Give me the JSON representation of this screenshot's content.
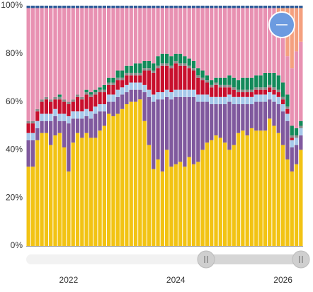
{
  "chart_data": {
    "type": "stacked-bar",
    "categories": [
      null,
      null,
      null,
      null,
      null,
      null,
      null,
      null,
      null,
      "2022",
      null,
      null,
      null,
      null,
      null,
      null,
      null,
      null,
      null,
      null,
      null,
      null,
      null,
      null,
      null,
      null,
      null,
      null,
      null,
      null,
      null,
      null,
      null,
      "2024",
      null,
      null,
      null,
      null,
      null,
      null,
      null,
      null,
      null,
      null,
      null,
      null,
      null,
      null,
      null,
      null,
      null,
      null,
      null,
      null,
      null,
      null,
      null,
      "2026",
      null,
      null,
      null,
      null
    ],
    "ylim": [
      0,
      100
    ],
    "yticks": [
      {
        "value": 0,
        "label": "0%"
      },
      {
        "value": 20,
        "label": "20%"
      },
      {
        "value": 40,
        "label": "40%"
      },
      {
        "value": 60,
        "label": "60%"
      },
      {
        "value": 80,
        "label": "80%"
      },
      {
        "value": 100,
        "label": "100%"
      }
    ],
    "grid": false,
    "series": [
      {
        "color": "#f2c314",
        "values": [
          33,
          33,
          44,
          47,
          47,
          42,
          46,
          47,
          41,
          31,
          43,
          47,
          45,
          47,
          45,
          45,
          48,
          50,
          55,
          54,
          55,
          57,
          59,
          60,
          60,
          61,
          52,
          42,
          32,
          36,
          31,
          40,
          33,
          34,
          35,
          33,
          37,
          34,
          35,
          40,
          43,
          44,
          46,
          45,
          43,
          40,
          42,
          47,
          48,
          46,
          49,
          48,
          48,
          48,
          53,
          50,
          47,
          42,
          36,
          31,
          34,
          40
        ]
      },
      {
        "color": "#80599e",
        "values": [
          11,
          11,
          5,
          5,
          5,
          10,
          8,
          5,
          11,
          20,
          10,
          6,
          8,
          7,
          8,
          10,
          8,
          6,
          5,
          6,
          7,
          6,
          5,
          5,
          5,
          4,
          12,
          20,
          28,
          25,
          30,
          22,
          28,
          28,
          27,
          29,
          25,
          28,
          25,
          20,
          17,
          15,
          13,
          14,
          16,
          20,
          17,
          12,
          11,
          13,
          10,
          12,
          12,
          12,
          8,
          10,
          12,
          14,
          16,
          10,
          8,
          6
        ]
      },
      {
        "color": "#a6c8ea",
        "values": [
          3,
          3,
          3,
          3,
          3,
          3,
          3,
          3,
          3,
          3,
          3,
          3,
          3,
          3,
          3,
          3,
          3,
          3,
          3,
          3,
          3,
          3,
          3,
          3,
          3,
          3,
          3,
          3,
          3,
          3,
          3,
          3,
          3,
          3,
          3,
          3,
          3,
          3,
          3,
          3,
          3,
          3,
          3,
          3,
          3,
          3,
          3,
          3,
          3,
          3,
          3,
          3,
          3,
          3,
          3,
          3,
          3,
          3,
          3,
          3,
          3,
          3
        ]
      },
      {
        "color": "#c8102e",
        "values": [
          4,
          4,
          4,
          5,
          6,
          5,
          4,
          6,
          5,
          5,
          4,
          6,
          5,
          6,
          6,
          5,
          5,
          5,
          4,
          4,
          4,
          3,
          4,
          3,
          3,
          3,
          6,
          8,
          9,
          10,
          11,
          10,
          10,
          11,
          10,
          10,
          9,
          8,
          7,
          6,
          5,
          4,
          5,
          4,
          4,
          3,
          3,
          2,
          2,
          2,
          2,
          2,
          2,
          2,
          2,
          2,
          2,
          2,
          2,
          1,
          0,
          0
        ]
      },
      {
        "color": "#8a8a8a",
        "values": [
          1,
          1,
          1,
          1,
          1,
          1,
          1,
          1,
          1,
          1,
          1,
          1,
          1,
          1,
          1,
          1,
          1,
          1,
          1,
          1,
          1,
          1,
          1,
          1,
          1,
          1,
          1,
          1,
          1,
          1,
          1,
          1,
          1,
          1,
          1,
          1,
          1,
          1,
          1,
          1,
          1,
          1,
          1,
          1,
          1,
          1,
          1,
          1,
          1,
          1,
          1,
          1,
          1,
          1,
          1,
          1,
          1,
          1,
          1,
          1,
          1,
          1
        ]
      },
      {
        "color": "#138a5a",
        "values": [
          0,
          0,
          0,
          0,
          0,
          0,
          0,
          1,
          0,
          0,
          0,
          0,
          0,
          1,
          1,
          1,
          1,
          2,
          2,
          2,
          3,
          3,
          3,
          3,
          4,
          4,
          3,
          3,
          3,
          4,
          4,
          4,
          4,
          3,
          4,
          3,
          3,
          3,
          3,
          3,
          2,
          2,
          2,
          3,
          3,
          4,
          4,
          4,
          5,
          5,
          5,
          5,
          5,
          6,
          5,
          6,
          6,
          6,
          5,
          4,
          3,
          2
        ]
      },
      {
        "color": "#e891b2",
        "values": [
          47,
          47,
          42,
          38,
          37,
          38,
          37,
          36,
          38,
          39,
          38,
          36,
          37,
          34,
          35,
          34,
          33,
          32,
          29,
          29,
          26,
          26,
          24,
          24,
          23,
          23,
          22,
          22,
          23,
          20,
          19,
          19,
          20,
          19,
          19,
          20,
          21,
          22,
          25,
          26,
          28,
          30,
          29,
          29,
          29,
          28,
          29,
          30,
          29,
          29,
          29,
          28,
          28,
          27,
          27,
          27,
          26,
          21,
          16,
          24,
          32,
          33
        ]
      },
      {
        "color": "#f4a07f",
        "values": [
          0,
          0,
          0,
          0,
          0,
          0,
          0,
          0,
          0,
          0,
          0,
          0,
          0,
          0,
          0,
          0,
          0,
          0,
          0,
          0,
          0,
          0,
          0,
          0,
          0,
          0,
          0,
          0,
          0,
          0,
          0,
          0,
          0,
          0,
          0,
          0,
          0,
          0,
          0,
          0,
          0,
          0,
          0,
          0,
          0,
          0,
          0,
          0,
          0,
          0,
          0,
          0,
          0,
          0,
          0,
          0,
          2,
          10,
          20,
          25,
          18,
          14
        ]
      },
      {
        "color": "#2e5c9a",
        "values": [
          1,
          1,
          1,
          1,
          1,
          1,
          1,
          1,
          1,
          1,
          1,
          1,
          1,
          1,
          1,
          1,
          1,
          1,
          1,
          1,
          1,
          1,
          1,
          1,
          1,
          1,
          1,
          1,
          1,
          1,
          1,
          1,
          1,
          1,
          1,
          1,
          1,
          1,
          1,
          1,
          1,
          1,
          1,
          1,
          1,
          1,
          1,
          1,
          1,
          1,
          1,
          1,
          1,
          1,
          1,
          1,
          1,
          1,
          1,
          1,
          1,
          1
        ]
      }
    ]
  }
}
